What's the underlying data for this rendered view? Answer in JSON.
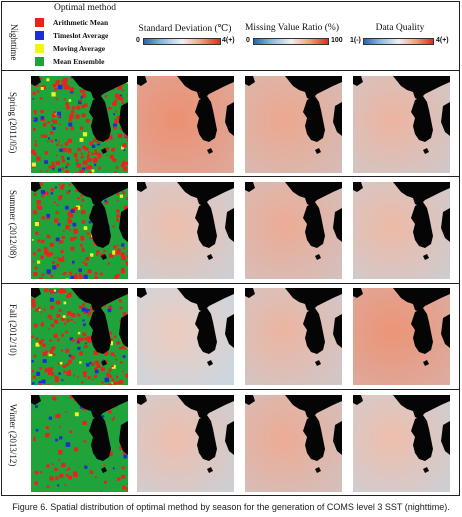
{
  "header": {
    "nighttime_label": "Nighttime",
    "optimal_method_title": "Optimal method",
    "legend": [
      {
        "label": "Arithmetic Mean",
        "color": "#e8231c"
      },
      {
        "label": "Timeslot Average",
        "color": "#1a2fd6"
      },
      {
        "label": "Moving Average",
        "color": "#f2f21c"
      },
      {
        "label": "Mean Ensemble",
        "color": "#1fa33a"
      }
    ],
    "std_title": "Standard Deviation (℃)",
    "std_min": "0",
    "std_max": "4(+)",
    "mvr_title": "Missing Value Ratio (%)",
    "mvr_min": "0",
    "mvr_max": "100",
    "dq_title": "Data Quality",
    "dq_min": "1(-)",
    "dq_max": "4(+)"
  },
  "rows": [
    {
      "label": "Spring (2011/05)"
    },
    {
      "label": "Summer (2012/08)"
    },
    {
      "label": "Fall (2012/10)"
    },
    {
      "label": "Winter (2013/12)"
    }
  ],
  "colors": {
    "land": "#050505",
    "arithmetic": "#e8231c",
    "timeslot": "#1a2fd6",
    "moving": "#f2f21c",
    "ensemble": "#1fa33a",
    "warm": "#ec8b6b",
    "cool": "#c8d7e2",
    "neutral": "#efe7e1"
  },
  "caption": "Figure 6. Spatial distribution of optimal method by season for the generation of COMS level 3 SST (nighttime)."
}
